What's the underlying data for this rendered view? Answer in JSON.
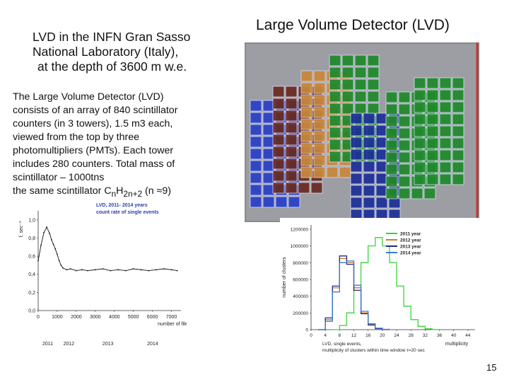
{
  "slide": {
    "title_left_lines": [
      "LVD in the INFN Gran Sasso",
      "National Laboratory (Italy),",
      "at the depth of 3600 m w.e."
    ],
    "title_right": "Large Volume Detector (LVD)",
    "description_lines": [
      "The Large Volume Detector (LVD)",
      "consists  of an array of 840 scintillator",
      "counters (in 3 towers), 1.5 m3 each,",
      "viewed from the top by three",
      "photomultipliers (PMTs). Each tower",
      "includes  280 counters.  Total mass of",
      "scintillator – 1000tns"
    ],
    "formula": {
      "prefix": "the same scintillator  C",
      "sub1": "n",
      "mid": "H",
      "sub2": "2n+2",
      "suffix": "  (n ≈9)"
    },
    "page_number": "15"
  },
  "photo": {
    "description": "detector towers rendering",
    "colors": [
      "#2a3fc8",
      "#6a2a20",
      "#c9883a",
      "#1f8a2a",
      "#1d2f9a"
    ]
  },
  "chart_data": [
    {
      "type": "line",
      "title": "LVD, 2011- 2014 years",
      "subtitle": "count rate of single events",
      "ylabel": "f, sec⁻¹",
      "xlabel": "number of files",
      "x_ticks": [
        "0",
        "1000",
        "2000",
        "3000",
        "4000",
        "5000",
        "6000",
        "7000"
      ],
      "y_ticks": [
        "0,0",
        "0,2",
        "0,4",
        "0,6",
        "0,8",
        "1,0"
      ],
      "year_labels": [
        {
          "label": "2011",
          "x": 0
        },
        {
          "label": "2012",
          "x": 1100
        },
        {
          "label": "2013",
          "x": 3150
        },
        {
          "label": "2014",
          "x": 5500
        }
      ],
      "xlim": [
        0,
        7500
      ],
      "ylim": [
        0,
        1.1
      ],
      "series": [
        {
          "color": "#111111",
          "x": [
            0,
            150,
            300,
            450,
            600,
            700,
            800,
            900,
            1000,
            1100,
            1200,
            1300,
            1500,
            1700,
            2000,
            2300,
            2600,
            3000,
            3400,
            3800,
            4200,
            4600,
            5000,
            5400,
            5800,
            6200,
            6600,
            7000,
            7300
          ],
          "y": [
            0.55,
            0.72,
            0.86,
            0.92,
            0.85,
            0.78,
            0.73,
            0.68,
            0.62,
            0.55,
            0.5,
            0.47,
            0.45,
            0.46,
            0.44,
            0.45,
            0.44,
            0.45,
            0.46,
            0.44,
            0.45,
            0.44,
            0.46,
            0.45,
            0.44,
            0.45,
            0.46,
            0.45,
            0.44
          ]
        }
      ]
    },
    {
      "type": "line",
      "title": "",
      "ylabel": "number of clusters",
      "xlabel": "multiplicity",
      "caption_lines": [
        "LVD, single events,",
        "multiplicity of clusters within time window  τ=20 sec"
      ],
      "x_ticks": [
        0,
        4,
        8,
        12,
        16,
        20,
        24,
        28,
        32,
        36,
        40,
        44
      ],
      "y_ticks": [
        0,
        200000,
        400000,
        600000,
        800000,
        1000000,
        1200000
      ],
      "y_tick_labels": [
        "0",
        "200000",
        "400000",
        "600000",
        "800000",
        "1000000",
        "1200000"
      ],
      "xlim": [
        0,
        46
      ],
      "ylim": [
        0,
        1250000
      ],
      "legend_position": "top-right",
      "series": [
        {
          "name": "2011 year",
          "color": "#3ad43a",
          "x": [
            6,
            8,
            10,
            12,
            14,
            16,
            18,
            20,
            22,
            24,
            26,
            28,
            30,
            32,
            34,
            36
          ],
          "y": [
            0,
            50000,
            200000,
            500000,
            800000,
            1000000,
            1100000,
            1000000,
            800000,
            520000,
            280000,
            120000,
            40000,
            10000,
            2000,
            0
          ]
        },
        {
          "name": "2012 year",
          "color": "#d27a2a",
          "x": [
            2,
            4,
            6,
            8,
            10,
            12,
            14,
            16,
            18,
            20,
            22
          ],
          "y": [
            0,
            120000,
            500000,
            850000,
            800000,
            500000,
            200000,
            60000,
            15000,
            3000,
            0
          ]
        },
        {
          "name": "2013 year",
          "color": "#28287a",
          "x": [
            2,
            4,
            6,
            8,
            10,
            12,
            14,
            16,
            18,
            20,
            22
          ],
          "y": [
            0,
            140000,
            520000,
            880000,
            780000,
            470000,
            190000,
            55000,
            12000,
            2000,
            0
          ]
        },
        {
          "name": "2014 year",
          "color": "#3a7ad4",
          "x": [
            2,
            4,
            6,
            8,
            10,
            12,
            14,
            16,
            18,
            20,
            22
          ],
          "y": [
            0,
            100000,
            450000,
            800000,
            820000,
            530000,
            220000,
            70000,
            18000,
            4000,
            0
          ]
        }
      ]
    }
  ]
}
